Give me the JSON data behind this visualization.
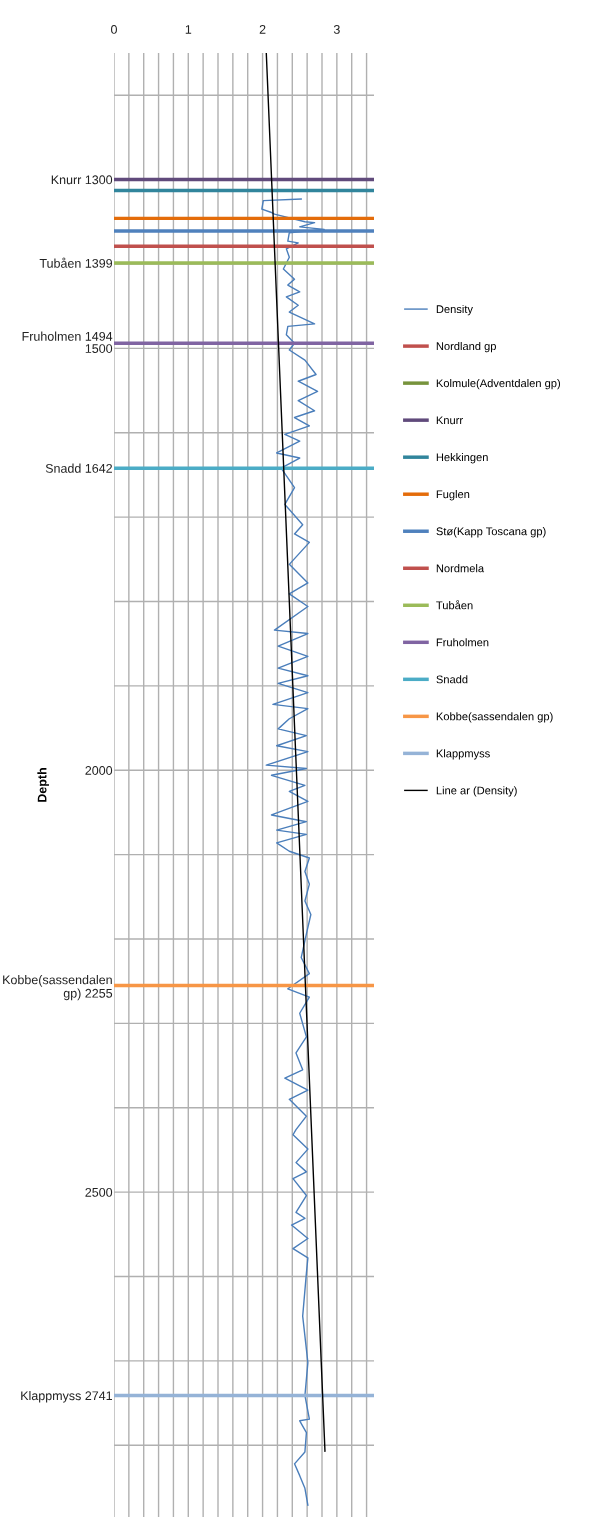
{
  "chart_data": {
    "type": "line",
    "ylabel": "Depth",
    "xlim": [
      0,
      3.5
    ],
    "xticks": [
      0,
      {
        "value": 0.2,
        "label": null
      },
      {
        "value": 0.4,
        "label": null
      },
      {
        "value": 0.6,
        "label": null
      },
      {
        "value": 0.8,
        "label": null
      },
      1,
      {
        "value": 1.2,
        "label": null
      },
      {
        "value": 1.4,
        "label": null
      },
      {
        "value": 1.6,
        "label": null
      },
      {
        "value": 1.8,
        "label": null
      },
      2,
      {
        "value": 2.2,
        "label": null
      },
      {
        "value": 2.4,
        "label": null
      },
      {
        "value": 2.6,
        "label": null
      },
      {
        "value": 2.8,
        "label": null
      },
      3,
      {
        "value": 3.2,
        "label": null
      },
      {
        "value": 3.4,
        "label": null
      }
    ],
    "ylim": [
      2885,
      1150
    ],
    "yticks": [
      {
        "value": 1200,
        "label": null
      },
      {
        "value": 1300,
        "label": "Knurr 1300"
      },
      {
        "value": 1399,
        "label": "Tubåen 1399"
      },
      {
        "value": 1400,
        "label": null
      },
      {
        "value": 1494,
        "label": "Fruholmen 1494"
      },
      1500,
      {
        "value": 1600,
        "label": null
      },
      {
        "value": 1642,
        "label": "Snadd 1642"
      },
      {
        "value": 1700,
        "label": null
      },
      {
        "value": 1800,
        "label": null
      },
      {
        "value": 1900,
        "label": null
      },
      2000,
      {
        "value": 2100,
        "label": null
      },
      {
        "value": 2200,
        "label": null
      },
      {
        "value": 2255,
        "label": "Kobbe(sassendalen gp) 2255"
      },
      {
        "value": 2300,
        "label": null
      },
      {
        "value": 2400,
        "label": null
      },
      2500,
      {
        "value": 2600,
        "label": null
      },
      {
        "value": 2700,
        "label": null
      },
      {
        "value": 2741,
        "label": "Klappmyss 2741"
      },
      {
        "value": 2800,
        "label": null
      }
    ],
    "grid": true,
    "legend": "right",
    "series": [
      {
        "name": "Density",
        "color": "#4a7ebb",
        "x": [
          2.52,
          2.01,
          1.99,
          2.12,
          2.16,
          2.57,
          2.7,
          2.5,
          2.83,
          2.36,
          2.34,
          2.48,
          2.32,
          2.36,
          2.28,
          2.43,
          2.34,
          2.5,
          2.32,
          2.48,
          2.36,
          2.7,
          2.34,
          2.32,
          2.43,
          2.36,
          2.57,
          2.72,
          2.48,
          2.74,
          2.48,
          2.7,
          2.43,
          2.63,
          2.3,
          2.5,
          2.19,
          2.5,
          2.25,
          2.43,
          2.3,
          2.54,
          2.43,
          2.63,
          2.36,
          2.61,
          2.36,
          2.61,
          2.16,
          2.61,
          2.21,
          2.61,
          2.21,
          2.61,
          2.21,
          2.61,
          2.14,
          2.61,
          2.36,
          2.21,
          2.59,
          2.19,
          2.61,
          2.05,
          2.59,
          2.12,
          2.57,
          2.36,
          2.61,
          2.12,
          2.59,
          2.19,
          2.59,
          2.19,
          2.36,
          2.63,
          2.57,
          2.63,
          2.57,
          2.65,
          2.59,
          2.52,
          2.63,
          2.34,
          2.63,
          2.5,
          2.59,
          2.45,
          2.54,
          2.3,
          2.61,
          2.36,
          2.59,
          2.45,
          2.41,
          2.61,
          2.45,
          2.59,
          2.41,
          2.59,
          2.45,
          2.57,
          2.39,
          2.61,
          2.41,
          2.61,
          2.59,
          2.54,
          2.61,
          2.57,
          2.63,
          2.5,
          2.59,
          2.57,
          2.43,
          2.5,
          2.57,
          2.61
        ],
        "values": [
          1323,
          1325,
          1335,
          1339,
          1341,
          1350,
          1351,
          1356,
          1359,
          1363,
          1373,
          1375,
          1382,
          1392,
          1406,
          1418,
          1425,
          1433,
          1439,
          1449,
          1457,
          1471,
          1474,
          1484,
          1494,
          1502,
          1514,
          1531,
          1539,
          1551,
          1562,
          1574,
          1582,
          1592,
          1602,
          1610,
          1624,
          1630,
          1642,
          1665,
          1685,
          1709,
          1720,
          1730,
          1756,
          1778,
          1791,
          1806,
          1834,
          1838,
          1853,
          1865,
          1879,
          1888,
          1897,
          1908,
          1922,
          1927,
          1939,
          1951,
          1959,
          1971,
          1978,
          1994,
          1998,
          2006,
          2018,
          2025,
          2037,
          2053,
          2061,
          2071,
          2076,
          2086,
          2096,
          2104,
          2120,
          2135,
          2155,
          2171,
          2194,
          2222,
          2241,
          2259,
          2269,
          2288,
          2316,
          2335,
          2355,
          2365,
          2379,
          2390,
          2410,
          2426,
          2432,
          2449,
          2465,
          2476,
          2484,
          2504,
          2524,
          2531,
          2539,
          2555,
          2567,
          2578,
          2596,
          2647,
          2702,
          2741,
          2769,
          2771,
          2785,
          2808,
          2822,
          2836,
          2851,
          2871
        ]
      },
      {
        "name": "Nordland gp",
        "color": "#c0504d",
        "values": [
          null,
          null
        ]
      },
      {
        "name": "Kolmule(Adventdalen gp)",
        "color": "#77933c",
        "values": [
          null,
          null
        ]
      },
      {
        "name": "Knurr",
        "color": "#604a7b",
        "x": [
          0,
          3.5
        ],
        "values": [
          1300,
          1300
        ]
      },
      {
        "name": "Hekkingen",
        "color": "#31859c",
        "x": [
          0,
          3.5
        ],
        "values": [
          1313,
          1313
        ]
      },
      {
        "name": "Fuglen",
        "color": "#e46c0a",
        "x": [
          0,
          3.5
        ],
        "values": [
          1346,
          1346
        ]
      },
      {
        "name": "Stø(Kapp Toscana gp)",
        "color": "#4f81bd",
        "x": [
          0,
          3.5
        ],
        "values": [
          1361,
          1361
        ]
      },
      {
        "name": "Nordmela",
        "color": "#c0504d",
        "x": [
          0,
          3.5
        ],
        "values": [
          1379,
          1379
        ]
      },
      {
        "name": "Tubåen",
        "color": "#9bbb59",
        "x": [
          0,
          3.5
        ],
        "values": [
          1399,
          1399
        ]
      },
      {
        "name": "Fruholmen",
        "color": "#8064a2",
        "x": [
          0,
          3.5
        ],
        "values": [
          1494,
          1494
        ]
      },
      {
        "name": "Snadd",
        "color": "#4bacc6",
        "x": [
          0,
          3.5
        ],
        "values": [
          1642,
          1642
        ]
      },
      {
        "name": "Kobbe(sassendalen gp)",
        "color": "#f79646",
        "x": [
          0,
          3.5
        ],
        "values": [
          2255,
          2255
        ]
      },
      {
        "name": "Klappmyss",
        "color": "#95b3d7",
        "x": [
          0,
          3.5
        ],
        "values": [
          2741,
          2741
        ]
      },
      {
        "name": "Line ar (Density)",
        "color": "#000000",
        "x": [
          2.05,
          2.84
        ],
        "values": [
          1150,
          2807
        ]
      }
    ]
  }
}
